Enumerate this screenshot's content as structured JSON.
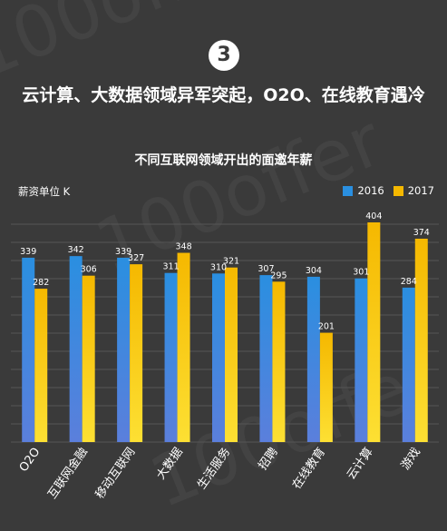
{
  "header": {
    "section_number": "3",
    "headline": "云计算、大数据领域异军突起，O2O、在线教育遇冷"
  },
  "watermark": {
    "text": "100offer"
  },
  "colors": {
    "background": "#3a3a3a",
    "series_2016": "#2a8fe0",
    "series_2016_light": "#5b7fdc",
    "series_2017": "#f5b800",
    "series_2017_light": "#fde033",
    "grid": "#555555"
  },
  "chart_data": {
    "type": "bar",
    "title": "不同互联网领域开出的面邀年薪",
    "ylabel": "薪资单位 K",
    "xlabel": "",
    "categories": [
      "O2O",
      "互联网金融",
      "移动互联网",
      "大数据",
      "生活服务",
      "招聘",
      "在线教育",
      "云计算",
      "游戏"
    ],
    "series": [
      {
        "name": "2016",
        "values": [
          339,
          342,
          339,
          311,
          310,
          307,
          304,
          301,
          284
        ]
      },
      {
        "name": "2017",
        "values": [
          282,
          306,
          327,
          348,
          321,
          295,
          201,
          404,
          374
        ]
      }
    ],
    "ylim": [
      0,
      404
    ],
    "grid": true,
    "legend_position": "top-right"
  }
}
